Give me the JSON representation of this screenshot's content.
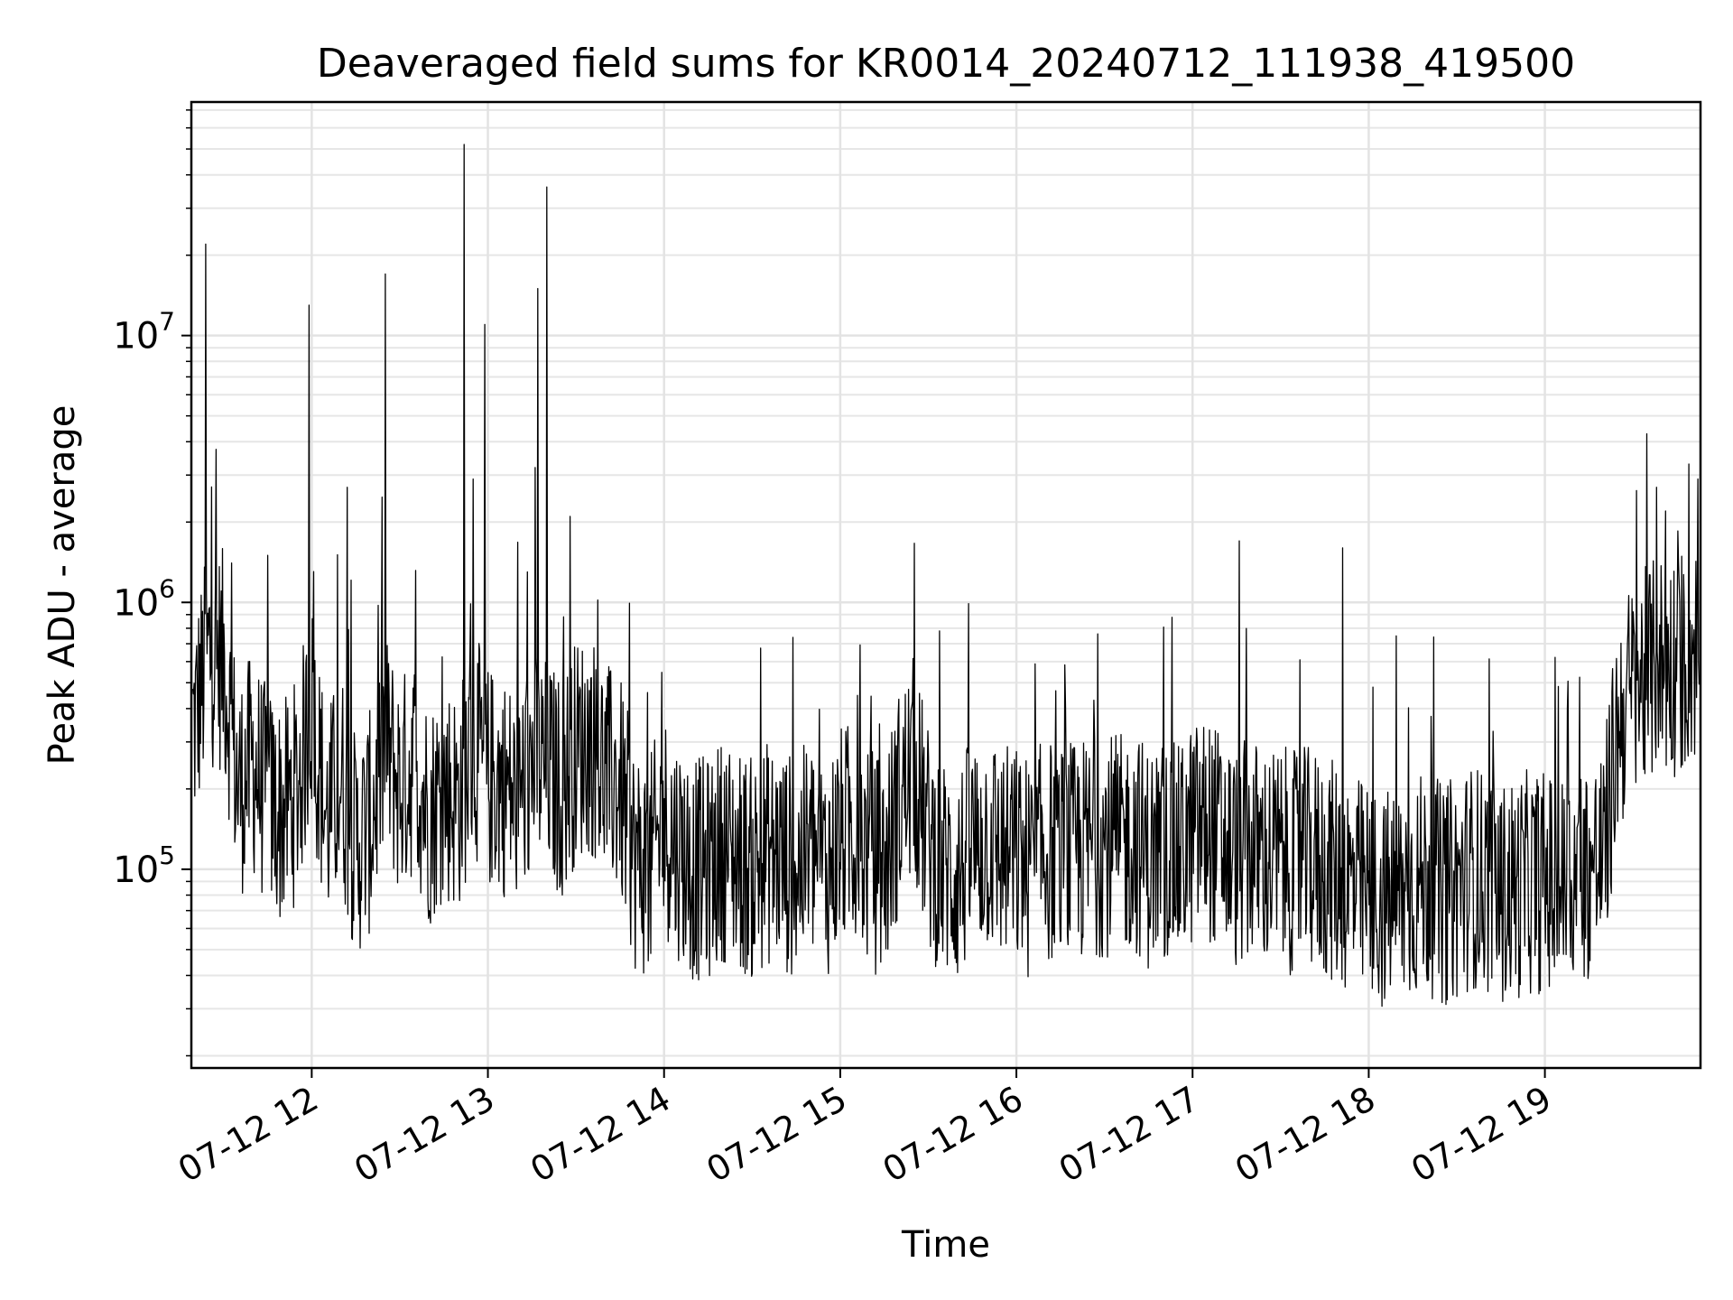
{
  "chart_data": {
    "type": "line",
    "title": "Deaveraged field sums for KR0014_20240712_111938_419500",
    "xlabel": "Time",
    "ylabel": "Peak ADU - average",
    "y_scale": "log",
    "x_range": [
      "2024-07-12 11:19",
      "2024-07-12 19:53"
    ],
    "ylim": [
      18000,
      75000000
    ],
    "x_ticks": [
      {
        "value": "2024-07-12 12:00",
        "label": "07-12 12"
      },
      {
        "value": "2024-07-12 13:00",
        "label": "07-12 13"
      },
      {
        "value": "2024-07-12 14:00",
        "label": "07-12 14"
      },
      {
        "value": "2024-07-12 15:00",
        "label": "07-12 15"
      },
      {
        "value": "2024-07-12 16:00",
        "label": "07-12 16"
      },
      {
        "value": "2024-07-12 17:00",
        "label": "07-12 17"
      },
      {
        "value": "2024-07-12 18:00",
        "label": "07-12 18"
      },
      {
        "value": "2024-07-12 19:00",
        "label": "07-12 19"
      }
    ],
    "y_ticks": [
      {
        "value": 100000,
        "base": "10",
        "exp": "5"
      },
      {
        "value": 1000000,
        "base": "10",
        "exp": "6"
      },
      {
        "value": 10000000,
        "base": "10",
        "exp": "7"
      }
    ],
    "grid": true,
    "line_color": "#000000",
    "x": [
      "11:20",
      "11:25",
      "11:30",
      "11:35",
      "11:40",
      "11:45",
      "11:50",
      "11:55",
      "12:00",
      "12:05",
      "12:10",
      "12:15",
      "12:20",
      "12:25",
      "12:30",
      "12:35",
      "12:40",
      "12:45",
      "12:50",
      "12:55",
      "13:00",
      "13:05",
      "13:10",
      "13:15",
      "13:20",
      "13:25",
      "13:30",
      "13:35",
      "13:40",
      "13:45",
      "13:50",
      "13:55",
      "14:00",
      "14:05",
      "14:10",
      "14:15",
      "14:20",
      "14:25",
      "14:30",
      "14:35",
      "14:40",
      "14:45",
      "14:50",
      "14:55",
      "15:00",
      "15:05",
      "15:10",
      "15:15",
      "15:20",
      "15:25",
      "15:30",
      "15:35",
      "15:40",
      "15:45",
      "15:50",
      "15:55",
      "16:00",
      "16:05",
      "16:10",
      "16:15",
      "16:20",
      "16:25",
      "16:30",
      "16:35",
      "16:40",
      "16:45",
      "16:50",
      "16:55",
      "17:00",
      "17:05",
      "17:10",
      "17:15",
      "17:20",
      "17:25",
      "17:30",
      "17:35",
      "17:40",
      "17:45",
      "17:50",
      "17:55",
      "18:00",
      "18:05",
      "18:10",
      "18:15",
      "18:20",
      "18:25",
      "18:30",
      "18:35",
      "18:40",
      "18:45",
      "18:50",
      "18:55",
      "19:00",
      "19:05",
      "19:10",
      "19:15",
      "19:20",
      "19:25",
      "19:30",
      "19:35",
      "19:40",
      "19:45",
      "19:50"
    ],
    "series": [
      {
        "values": [
          350000,
          650000,
          600000,
          200000,
          250000,
          180000,
          160000,
          200000,
          400000,
          150000,
          220000,
          120000,
          150000,
          300000,
          200000,
          250000,
          160000,
          200000,
          180000,
          300000,
          220000,
          210000,
          180000,
          250000,
          240000,
          200000,
          280000,
          300000,
          230000,
          200000,
          110000,
          100000,
          150000,
          120000,
          100000,
          100000,
          120000,
          110000,
          100000,
          115000,
          110000,
          100000,
          120000,
          100000,
          130000,
          140000,
          110000,
          100000,
          180000,
          240000,
          130000,
          100000,
          95000,
          120000,
          130000,
          115000,
          110000,
          100000,
          120000,
          110000,
          115000,
          120000,
          125000,
          120000,
          130000,
          110000,
          120000,
          110000,
          135000,
          145000,
          125000,
          110000,
          120000,
          110000,
          110000,
          105000,
          110000,
          100000,
          95000,
          85000,
          80000,
          75000,
          80000,
          85000,
          90000,
          80000,
          85000,
          95000,
          90000,
          80000,
          85000,
          90000,
          90000,
          85000,
          95000,
          100000,
          110000,
          350000,
          480000,
          520000,
          600000,
          580000,
          650000
        ]
      }
    ],
    "spikes": [
      {
        "x": "11:24",
        "y": 22000000
      },
      {
        "x": "11:59",
        "y": 13000000
      },
      {
        "x": "12:25",
        "y": 17000000
      },
      {
        "x": "12:12",
        "y": 2700000
      },
      {
        "x": "12:52",
        "y": 52000000
      },
      {
        "x": "12:59",
        "y": 11000000
      },
      {
        "x": "12:55",
        "y": 2900000
      },
      {
        "x": "13:17",
        "y": 15000000
      },
      {
        "x": "13:20",
        "y": 36000000
      },
      {
        "x": "13:16",
        "y": 3200000
      },
      {
        "x": "13:28",
        "y": 2100000
      },
      {
        "x": "11:45",
        "y": 1500000
      },
      {
        "x": "17:16",
        "y": 1700000
      },
      {
        "x": "17:51",
        "y": 1600000
      },
      {
        "x": "19:38",
        "y": 2700000
      },
      {
        "x": "19:41",
        "y": 2200000
      },
      {
        "x": "19:49",
        "y": 3300000
      },
      {
        "x": "19:52",
        "y": 2900000
      }
    ]
  }
}
